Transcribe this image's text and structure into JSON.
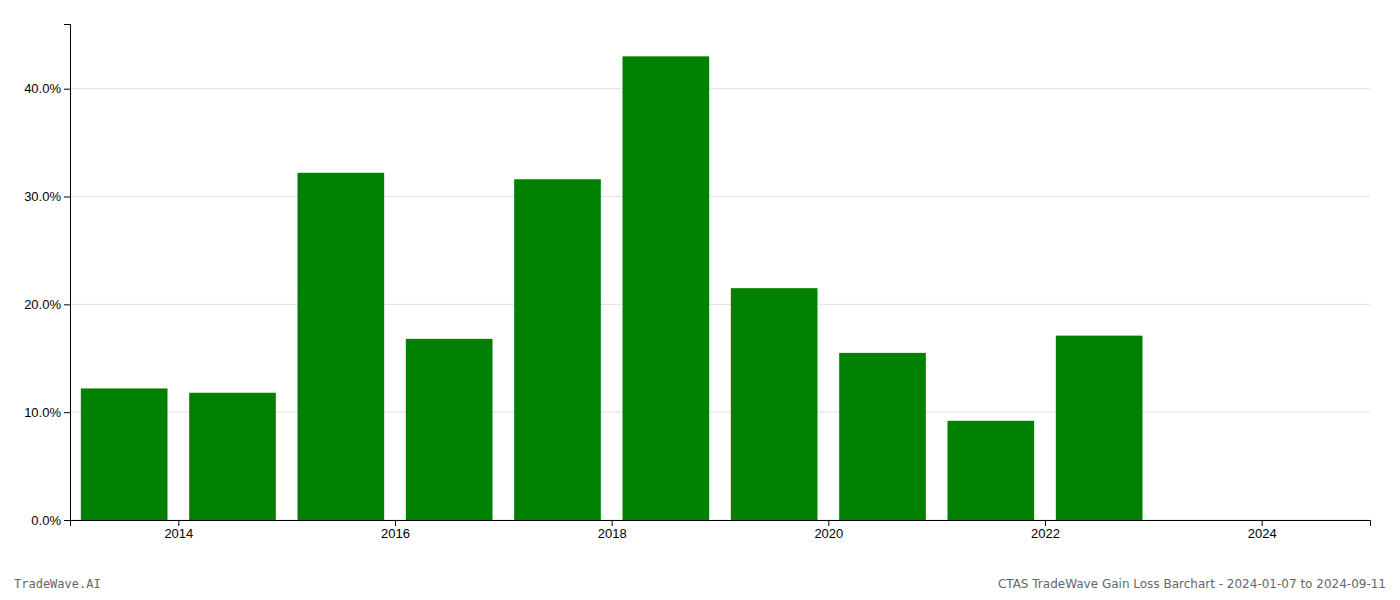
{
  "chart_data": {
    "type": "bar",
    "x": [
      2013.5,
      2014.5,
      2015.5,
      2016.5,
      2017.5,
      2018.5,
      2019.5,
      2020.5,
      2021.5,
      2022.5
    ],
    "values": [
      0.122,
      0.118,
      0.322,
      0.168,
      0.316,
      0.43,
      0.215,
      0.155,
      0.092,
      0.171
    ],
    "color": "#008000",
    "xlim": [
      2013.0,
      2025.0
    ],
    "xticks": [
      2014,
      2016,
      2018,
      2020,
      2022,
      2024
    ],
    "ylim": [
      0,
      0.46
    ],
    "yticks": [
      {
        "value": 0.0,
        "label": "0.0%"
      },
      {
        "value": 0.1,
        "label": "10.0%"
      },
      {
        "value": 0.2,
        "label": "20.0%"
      },
      {
        "value": 0.3,
        "label": "30.0%"
      },
      {
        "value": 0.4,
        "label": "40.0%"
      }
    ],
    "grid": true,
    "annotations": [
      "TradeWave.AI",
      "CTAS TradeWave Gain Loss Barchart - 2024-01-07 to 2024-09-11"
    ]
  }
}
